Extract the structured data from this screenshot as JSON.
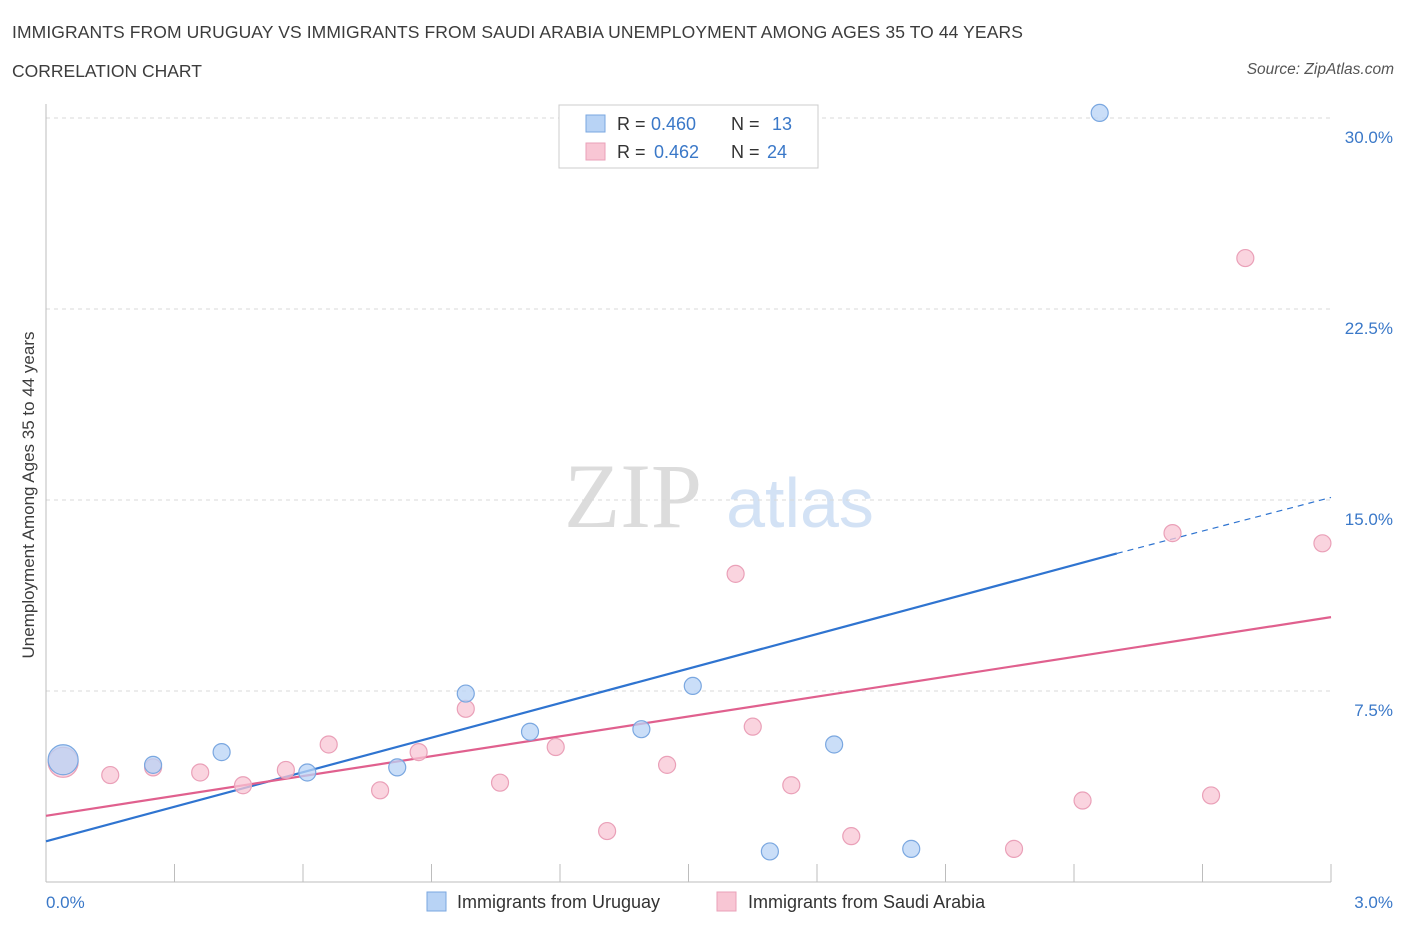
{
  "header": {
    "title": "IMMIGRANTS FROM URUGUAY VS IMMIGRANTS FROM SAUDI ARABIA UNEMPLOYMENT AMONG AGES 35 TO 44 YEARS",
    "subtitle": "CORRELATION CHART",
    "source": "Source: ZipAtlas.com"
  },
  "watermark": {
    "zip": "ZIP",
    "atlas": "atlas"
  },
  "colors": {
    "uruguay_fill": "#b8d3f5",
    "uruguay_stroke": "#7aa7e0",
    "uruguay_line": "#2f74d0",
    "saudi_fill": "#f8c6d4",
    "saudi_stroke": "#eaa0b8",
    "saudi_line": "#e0608e",
    "value_text": "#3a78c8",
    "grid": "#d9d9d9"
  },
  "chart_data": {
    "type": "scatter",
    "title": "IMMIGRANTS FROM URUGUAY VS IMMIGRANTS FROM SAUDI ARABIA UNEMPLOYMENT AMONG AGES 35 TO 44 YEARS",
    "xlabel": "",
    "ylabel": "Unemployment Among Ages 35 to 44 years",
    "xlim": [
      0,
      3.0
    ],
    "ylim": [
      0,
      30.0
    ],
    "x_tick_labels": [
      "0.0%",
      "3.0%"
    ],
    "y_ticks": [
      7.5,
      15.0,
      22.5,
      30.0
    ],
    "y_tick_labels": [
      "7.5%",
      "15.0%",
      "22.5%",
      "30.0%"
    ],
    "grid": true,
    "legend": [
      {
        "label": "R = ",
        "r": "0.460",
        "n_label": "N = ",
        "n": "13"
      },
      {
        "label": "R = ",
        "r": "0.462",
        "n_label": "N = ",
        "n": "24"
      }
    ],
    "series": [
      {
        "name": "Immigrants from Uruguay",
        "points": [
          {
            "x": 0.04,
            "y": 4.8,
            "big": true
          },
          {
            "x": 0.25,
            "y": 4.6
          },
          {
            "x": 0.41,
            "y": 5.1
          },
          {
            "x": 0.61,
            "y": 4.3
          },
          {
            "x": 0.82,
            "y": 4.5
          },
          {
            "x": 0.98,
            "y": 7.4
          },
          {
            "x": 1.13,
            "y": 5.9
          },
          {
            "x": 1.39,
            "y": 6.0
          },
          {
            "x": 1.51,
            "y": 7.7
          },
          {
            "x": 1.69,
            "y": 1.2
          },
          {
            "x": 1.84,
            "y": 5.4
          },
          {
            "x": 2.02,
            "y": 1.3
          },
          {
            "x": 2.46,
            "y": 30.2
          }
        ],
        "trend": {
          "x0": 0.0,
          "y0": 1.6,
          "x1": 2.5,
          "y1": 12.9,
          "dash_to_x": 3.0,
          "dash_to_y": 15.1
        }
      },
      {
        "name": "Immigrants from Saudi Arabia",
        "points": [
          {
            "x": 0.04,
            "y": 4.7,
            "big": true
          },
          {
            "x": 0.15,
            "y": 4.2
          },
          {
            "x": 0.25,
            "y": 4.5
          },
          {
            "x": 0.36,
            "y": 4.3
          },
          {
            "x": 0.46,
            "y": 3.8
          },
          {
            "x": 0.56,
            "y": 4.4
          },
          {
            "x": 0.66,
            "y": 5.4
          },
          {
            "x": 0.78,
            "y": 3.6
          },
          {
            "x": 0.87,
            "y": 5.1
          },
          {
            "x": 0.98,
            "y": 6.8
          },
          {
            "x": 1.06,
            "y": 3.9
          },
          {
            "x": 1.19,
            "y": 5.3
          },
          {
            "x": 1.31,
            "y": 2.0
          },
          {
            "x": 1.45,
            "y": 4.6
          },
          {
            "x": 1.61,
            "y": 12.1
          },
          {
            "x": 1.65,
            "y": 6.1
          },
          {
            "x": 1.74,
            "y": 3.8
          },
          {
            "x": 1.88,
            "y": 1.8
          },
          {
            "x": 2.26,
            "y": 1.3
          },
          {
            "x": 2.42,
            "y": 3.2
          },
          {
            "x": 2.63,
            "y": 13.7
          },
          {
            "x": 2.72,
            "y": 3.4
          },
          {
            "x": 2.8,
            "y": 24.5
          },
          {
            "x": 2.98,
            "y": 13.3
          }
        ],
        "trend": {
          "x0": 0.0,
          "y0": 2.6,
          "x1": 3.0,
          "y1": 10.4
        }
      }
    ]
  }
}
